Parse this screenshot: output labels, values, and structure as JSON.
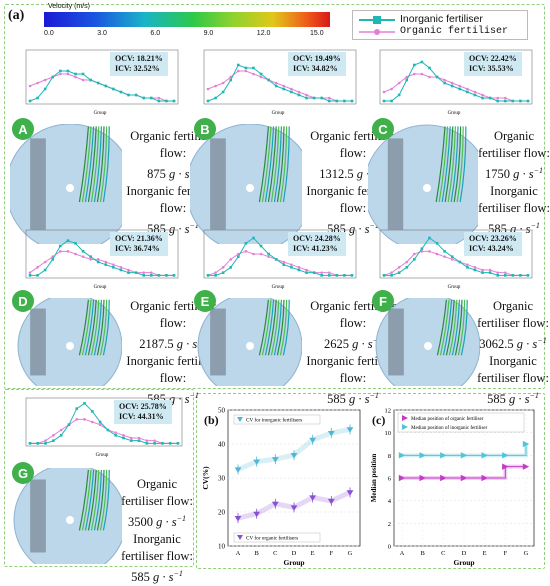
{
  "figure": {
    "panel_a_label": "(a)",
    "panel_b_label": "(b)",
    "panel_c_label": "(c)",
    "colorbar": {
      "title": "Velocity (m/s)",
      "ticks": [
        "0.0",
        "3.0",
        "6.0",
        "9.0",
        "12.0",
        "15.0"
      ]
    },
    "legend": {
      "inorganic": "Inorganic fertiliser",
      "organic": "Organic fertiliser",
      "inorganic_color": "#1fb7b5",
      "organic_color": "#e57fd6"
    },
    "group_axis_label": "Group",
    "flow_unit": "g · s",
    "flow_unit_exp": "−1",
    "organic_flow_label": "Organic fertiliser flow:",
    "inorganic_flow_label": "Inorganic fertiliser flow:",
    "panels": [
      {
        "id": "A",
        "ocv": "OCV: 18.21%",
        "icv": "ICV: 32.52%",
        "organic_flow": "875",
        "inorganic_flow": "585"
      },
      {
        "id": "B",
        "ocv": "OCV: 19.49%",
        "icv": "ICV: 34.82%",
        "organic_flow": "1312.5",
        "inorganic_flow": "585"
      },
      {
        "id": "C",
        "ocv": "OCV: 22.42%",
        "icv": "ICV: 35.53%",
        "organic_flow": "1750",
        "inorganic_flow": "585"
      },
      {
        "id": "D",
        "ocv": "OCV: 21.36%",
        "icv": "ICV: 36.74%",
        "organic_flow": "2187.5",
        "inorganic_flow": "585"
      },
      {
        "id": "E",
        "ocv": "OCV: 24.28%",
        "icv": "ICV: 41.23%",
        "organic_flow": "2625",
        "inorganic_flow": "585"
      },
      {
        "id": "F",
        "ocv": "OCV: 23.26%",
        "icv": "ICV: 43.24%",
        "organic_flow": "3062.5",
        "inorganic_flow": "585"
      },
      {
        "id": "G",
        "ocv": "OCV: 25.78%",
        "icv": "ICV: 44.31%",
        "organic_flow": "3500",
        "inorganic_flow": "585"
      }
    ]
  },
  "chart_data": [
    {
      "type": "line",
      "panel": "b",
      "title": "",
      "xlabel": "Group",
      "ylabel": "CV(%)",
      "categories": [
        "A",
        "B",
        "C",
        "D",
        "E",
        "F",
        "G"
      ],
      "ylim": [
        10,
        50
      ],
      "yticks": [
        "10",
        "20",
        "30",
        "40",
        "50"
      ],
      "series": [
        {
          "name": "CV for inorganic fertilisers",
          "values": [
            32.52,
            34.82,
            35.53,
            36.74,
            41.23,
            43.24,
            44.31
          ],
          "color": "#4fb6d8"
        },
        {
          "name": "CV for organic fertilisers",
          "values": [
            18.21,
            19.49,
            22.42,
            21.36,
            24.28,
            23.26,
            25.78
          ],
          "color": "#8a4fd6"
        }
      ]
    },
    {
      "type": "line",
      "panel": "c",
      "title": "",
      "xlabel": "Group",
      "ylabel": "Median position",
      "categories": [
        "A",
        "B",
        "C",
        "D",
        "E",
        "F",
        "G"
      ],
      "ylim": [
        0,
        12
      ],
      "yticks": [
        "0",
        "2",
        "4",
        "6",
        "8",
        "10",
        "12"
      ],
      "series": [
        {
          "name": "Median position of organic fertiliser",
          "values": [
            6,
            6,
            6,
            6,
            6,
            7,
            7
          ],
          "color": "#c23cc7"
        },
        {
          "name": "Median position of inorganic fertiliser",
          "values": [
            8,
            8,
            8,
            8,
            8,
            8,
            9
          ],
          "color": "#4fc6d8"
        }
      ]
    },
    {
      "type": "line",
      "panel": "a-small",
      "xlabel": "Group",
      "x": [
        1,
        2,
        3,
        4,
        5,
        6,
        7,
        8,
        9,
        10,
        11,
        12,
        13,
        14,
        15,
        16,
        17,
        18,
        19,
        20
      ],
      "note_series": [
        "Inorganic fertiliser",
        "Organic fertiliser"
      ],
      "profiles": {
        "A": {
          "inorganic": [
            0.01,
            0.02,
            0.05,
            0.09,
            0.11,
            0.11,
            0.1,
            0.1,
            0.08,
            0.07,
            0.06,
            0.05,
            0.04,
            0.03,
            0.03,
            0.02,
            0.02,
            0.01,
            0.01,
            0.01
          ],
          "organic": [
            0.06,
            0.07,
            0.08,
            0.09,
            0.1,
            0.1,
            0.09,
            0.08,
            0.08,
            0.07,
            0.06,
            0.05,
            0.04,
            0.03,
            0.03,
            0.02,
            0.02,
            0.02,
            0.01,
            0.01
          ]
        },
        "B": {
          "inorganic": [
            0.01,
            0.02,
            0.04,
            0.08,
            0.13,
            0.12,
            0.12,
            0.1,
            0.08,
            0.06,
            0.05,
            0.04,
            0.03,
            0.02,
            0.02,
            0.02,
            0.01,
            0.01,
            0.01,
            0.01
          ],
          "organic": [
            0.05,
            0.06,
            0.07,
            0.09,
            0.11,
            0.11,
            0.1,
            0.09,
            0.08,
            0.07,
            0.06,
            0.05,
            0.04,
            0.03,
            0.02,
            0.02,
            0.02,
            0.01,
            0.01,
            0.01
          ]
        },
        "C": {
          "inorganic": [
            0.01,
            0.01,
            0.03,
            0.08,
            0.13,
            0.14,
            0.12,
            0.09,
            0.07,
            0.06,
            0.05,
            0.04,
            0.03,
            0.02,
            0.02,
            0.01,
            0.01,
            0.01,
            0.01,
            0.01
          ],
          "organic": [
            0.04,
            0.05,
            0.07,
            0.09,
            0.1,
            0.1,
            0.09,
            0.09,
            0.08,
            0.07,
            0.06,
            0.05,
            0.04,
            0.03,
            0.02,
            0.02,
            0.02,
            0.01,
            0.01,
            0.01
          ]
        },
        "D": {
          "inorganic": [
            0.01,
            0.01,
            0.03,
            0.07,
            0.12,
            0.14,
            0.13,
            0.1,
            0.08,
            0.06,
            0.05,
            0.04,
            0.03,
            0.02,
            0.02,
            0.01,
            0.01,
            0.01,
            0.01,
            0.01
          ],
          "organic": [
            0.02,
            0.04,
            0.06,
            0.08,
            0.1,
            0.1,
            0.09,
            0.08,
            0.07,
            0.07,
            0.06,
            0.05,
            0.04,
            0.03,
            0.02,
            0.02,
            0.02,
            0.01,
            0.01,
            0.01
          ]
        },
        "E": {
          "inorganic": [
            0.01,
            0.01,
            0.02,
            0.04,
            0.08,
            0.13,
            0.15,
            0.12,
            0.09,
            0.07,
            0.05,
            0.04,
            0.03,
            0.02,
            0.02,
            0.01,
            0.01,
            0.01,
            0.01,
            0.01
          ],
          "organic": [
            0.01,
            0.02,
            0.04,
            0.07,
            0.09,
            0.1,
            0.09,
            0.09,
            0.08,
            0.07,
            0.06,
            0.05,
            0.04,
            0.03,
            0.02,
            0.02,
            0.02,
            0.01,
            0.01,
            0.01
          ]
        },
        "F": {
          "inorganic": [
            0.01,
            0.01,
            0.02,
            0.04,
            0.07,
            0.11,
            0.15,
            0.13,
            0.1,
            0.08,
            0.06,
            0.04,
            0.03,
            0.02,
            0.02,
            0.01,
            0.01,
            0.01,
            0.01,
            0.01
          ],
          "organic": [
            0.01,
            0.02,
            0.04,
            0.06,
            0.09,
            0.1,
            0.1,
            0.09,
            0.08,
            0.07,
            0.06,
            0.05,
            0.04,
            0.03,
            0.03,
            0.02,
            0.02,
            0.01,
            0.01,
            0.01
          ]
        },
        "G": {
          "inorganic": [
            0.01,
            0.01,
            0.01,
            0.02,
            0.04,
            0.08,
            0.14,
            0.16,
            0.13,
            0.09,
            0.06,
            0.04,
            0.03,
            0.02,
            0.02,
            0.01,
            0.01,
            0.01,
            0.01,
            0.01
          ],
          "organic": [
            0.01,
            0.01,
            0.02,
            0.04,
            0.06,
            0.08,
            0.1,
            0.1,
            0.09,
            0.08,
            0.06,
            0.05,
            0.04,
            0.03,
            0.03,
            0.02,
            0.02,
            0.01,
            0.01,
            0.01
          ]
        }
      }
    }
  ]
}
